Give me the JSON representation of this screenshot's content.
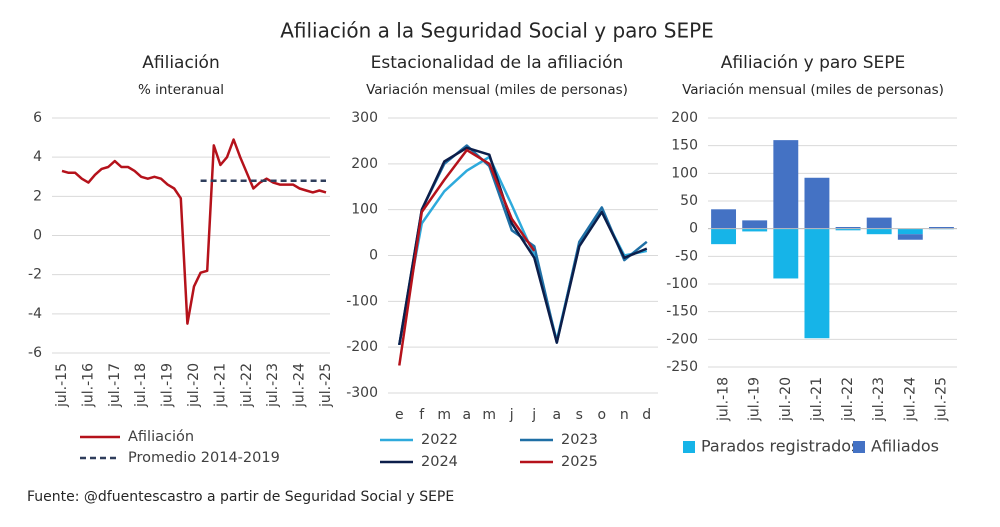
{
  "title": "Afiliación a la Seguridad Social y paro SEPE",
  "source": "Fuente: @dfuentescastro a partir de Seguridad Social y SEPE",
  "chart_data": [
    {
      "type": "line",
      "title": "Afiliación",
      "subtitle": "% interanual",
      "categories": [
        "jul.-15",
        null,
        null,
        null,
        "jul.-16",
        null,
        null,
        null,
        "jul.-17",
        null,
        null,
        null,
        "jul.-18",
        null,
        null,
        null,
        "jul.-19",
        null,
        null,
        null,
        "jul.-20",
        null,
        null,
        null,
        "jul.-21",
        null,
        null,
        null,
        "jul.-22",
        null,
        null,
        null,
        "jul.-23",
        null,
        null,
        null,
        "jul.-24",
        null,
        null,
        null,
        "jul.-25"
      ],
      "series": [
        {
          "name": "Afiliación",
          "color": "#b5121b",
          "line_style": "solid",
          "values": [
            3.3,
            3.2,
            3.2,
            2.9,
            2.7,
            3.1,
            3.4,
            3.5,
            3.8,
            3.5,
            3.5,
            3.3,
            3.0,
            2.9,
            3.0,
            2.9,
            2.6,
            2.4,
            1.9,
            -4.5,
            -2.6,
            -1.9,
            -1.8,
            4.6,
            3.6,
            4.0,
            4.9,
            4.0,
            3.2,
            2.4,
            2.7,
            2.9,
            2.7,
            2.6,
            2.6,
            2.6,
            2.4,
            2.3,
            2.2,
            2.3,
            2.2
          ]
        },
        {
          "name": "Promedio 2014-2019",
          "color": "#2f3e5c",
          "line_style": "dashed",
          "values": [
            null,
            null,
            null,
            null,
            null,
            null,
            null,
            null,
            null,
            null,
            null,
            null,
            null,
            null,
            null,
            null,
            null,
            null,
            null,
            null,
            null,
            2.8,
            2.8,
            2.8,
            2.8,
            2.8,
            2.8,
            2.8,
            2.8,
            2.8,
            2.8,
            2.8,
            2.8,
            2.8,
            2.8,
            2.8,
            2.8,
            2.8,
            2.8,
            2.8,
            2.8
          ]
        }
      ],
      "ylim": [
        -6,
        6
      ],
      "yticks": [
        -6,
        -4,
        -2,
        0,
        2,
        4,
        6
      ],
      "grid": true,
      "legend": "bottom"
    },
    {
      "type": "line",
      "title": "Estacionalidad de la afiliación",
      "subtitle": "Variación mensual (miles de personas)",
      "categories": [
        "e",
        "f",
        "m",
        "a",
        "m",
        "j",
        "j",
        "a",
        "s",
        "o",
        "n",
        "d"
      ],
      "series": [
        {
          "name": "2022",
          "color": "#2eaadc",
          "line_style": "solid",
          "values": [
            -195,
            70,
            140,
            185,
            215,
            110,
            0,
            -185,
            25,
            95,
            0,
            10
          ]
        },
        {
          "name": "2023",
          "color": "#1f6fa5",
          "line_style": "solid",
          "values": [
            -195,
            100,
            200,
            240,
            195,
            55,
            20,
            -190,
            30,
            105,
            -10,
            30
          ]
        },
        {
          "name": "2024",
          "color": "#0c1e4a",
          "line_style": "solid",
          "values": [
            -195,
            100,
            205,
            235,
            220,
            70,
            -5,
            -190,
            20,
            95,
            -5,
            15
          ]
        },
        {
          "name": "2025",
          "color": "#b5121b",
          "line_style": "solid",
          "values": [
            -240,
            95,
            165,
            230,
            200,
            80,
            10,
            null,
            null,
            null,
            null,
            null
          ]
        }
      ],
      "ylim": [
        -300,
        300
      ],
      "yticks": [
        -300,
        -200,
        -100,
        0,
        100,
        200,
        300
      ],
      "grid": true,
      "legend": "bottom"
    },
    {
      "type": "bar",
      "stacked": true,
      "title": "Afiliación y paro SEPE",
      "subtitle": "Variación mensual (miles de personas)",
      "categories": [
        "jul.-18",
        "jul.-19",
        "jul.-20",
        "jul.-21",
        "jul.-22",
        "jul.-23",
        "jul.-24",
        "jul.-25"
      ],
      "series": [
        {
          "name": "Parados registrados",
          "color": "#16b4e8",
          "values": [
            -28,
            -5,
            -90,
            -198,
            -3,
            -10,
            -10,
            -1
          ]
        },
        {
          "name": "Afiliados",
          "color": "#4472c4",
          "values": [
            35,
            15,
            160,
            92,
            3,
            20,
            -10,
            3
          ]
        }
      ],
      "ylim": [
        -250,
        200
      ],
      "yticks": [
        -250,
        -200,
        -150,
        -100,
        -50,
        0,
        50,
        100,
        150,
        200
      ],
      "grid": true,
      "legend": "bottom"
    }
  ]
}
